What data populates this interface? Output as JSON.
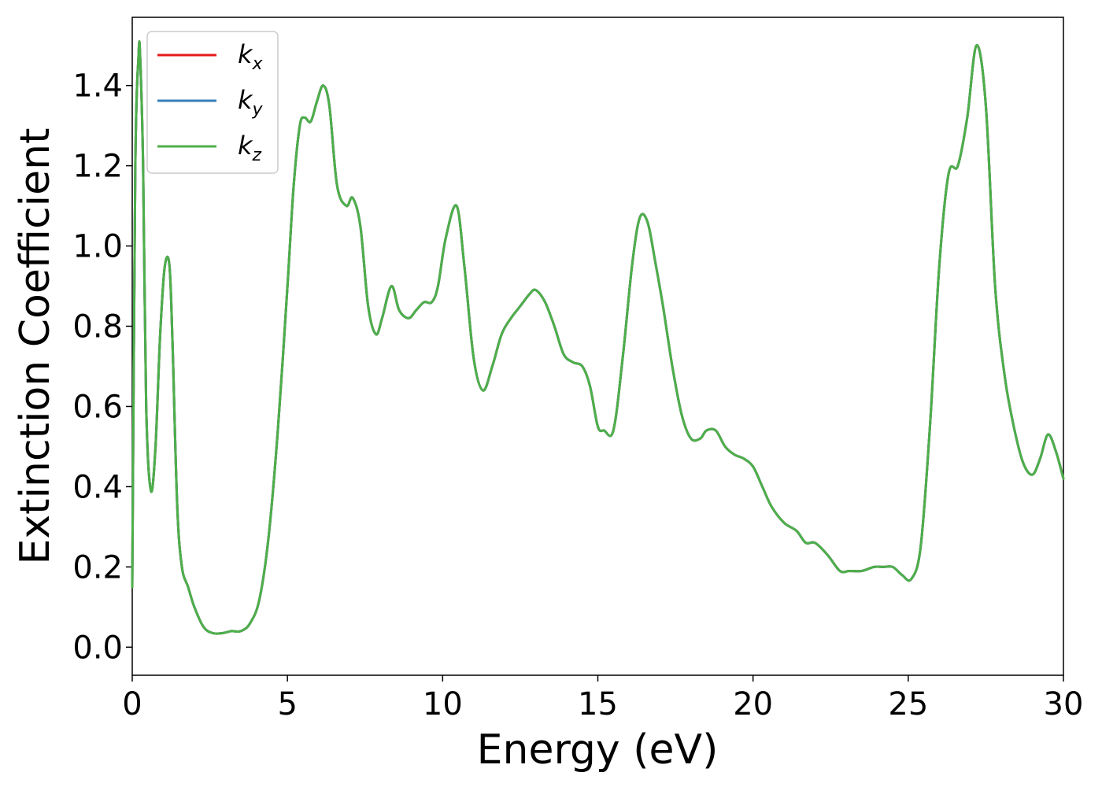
{
  "chart_data": {
    "type": "line",
    "title": "",
    "xlabel": "Energy (eV)",
    "ylabel": "Extinction Coefficient",
    "xlim": [
      0,
      30
    ],
    "ylim": [
      -0.07,
      1.57
    ],
    "x_ticks": [
      "0",
      "5",
      "10",
      "15",
      "20",
      "25",
      "30"
    ],
    "y_ticks": [
      "0.0",
      "0.2",
      "0.4",
      "0.6",
      "0.8",
      "1.0",
      "1.2",
      "1.4"
    ],
    "grid": false,
    "legend_position": "top-left",
    "series": [
      {
        "name": "k",
        "subscript": "x",
        "color": "#e41a1c"
      },
      {
        "name": "k",
        "subscript": "y",
        "color": "#377eb8"
      },
      {
        "name": "k",
        "subscript": "z",
        "color": "#4daf4a"
      }
    ],
    "x": [
      0,
      0.1,
      0.2,
      0.25,
      0.35,
      0.45,
      0.6,
      0.75,
      0.9,
      1.05,
      1.2,
      1.3,
      1.45,
      1.6,
      1.8,
      2.0,
      2.3,
      2.6,
      2.9,
      3.2,
      3.5,
      3.8,
      4.1,
      4.4,
      4.7,
      5.0,
      5.2,
      5.4,
      5.55,
      5.75,
      5.95,
      6.15,
      6.35,
      6.6,
      6.9,
      7.1,
      7.35,
      7.6,
      7.85,
      8.05,
      8.35,
      8.6,
      8.9,
      9.15,
      9.4,
      9.65,
      9.85,
      10.1,
      10.45,
      10.7,
      11.0,
      11.3,
      11.6,
      11.9,
      12.2,
      12.5,
      12.8,
      13.0,
      13.3,
      13.6,
      13.9,
      14.2,
      14.5,
      14.75,
      15.0,
      15.2,
      15.5,
      15.8,
      16.1,
      16.35,
      16.6,
      16.85,
      17.1,
      17.4,
      17.7,
      18.0,
      18.3,
      18.5,
      18.8,
      19.1,
      19.4,
      19.7,
      20.0,
      20.3,
      20.6,
      21.0,
      21.4,
      21.7,
      22.0,
      22.4,
      22.8,
      23.1,
      23.5,
      23.9,
      24.2,
      24.5,
      24.8,
      25.1,
      25.4,
      25.7,
      26.0,
      26.3,
      26.6,
      26.9,
      27.2,
      27.5,
      27.8,
      28.1,
      28.4,
      28.7,
      29.0,
      29.25,
      29.5,
      29.75,
      30.0
    ],
    "y": [
      0.15,
      1.2,
      1.47,
      1.48,
      1.2,
      0.6,
      0.39,
      0.5,
      0.78,
      0.95,
      0.95,
      0.75,
      0.35,
      0.2,
      0.15,
      0.1,
      0.05,
      0.035,
      0.035,
      0.04,
      0.04,
      0.06,
      0.12,
      0.28,
      0.55,
      0.9,
      1.15,
      1.3,
      1.32,
      1.31,
      1.36,
      1.4,
      1.35,
      1.15,
      1.1,
      1.12,
      1.05,
      0.85,
      0.78,
      0.82,
      0.9,
      0.84,
      0.82,
      0.84,
      0.86,
      0.86,
      0.9,
      1.02,
      1.1,
      0.95,
      0.72,
      0.64,
      0.7,
      0.78,
      0.82,
      0.85,
      0.88,
      0.89,
      0.86,
      0.8,
      0.73,
      0.71,
      0.7,
      0.65,
      0.55,
      0.54,
      0.54,
      0.72,
      0.95,
      1.07,
      1.06,
      0.96,
      0.85,
      0.7,
      0.58,
      0.52,
      0.52,
      0.54,
      0.54,
      0.5,
      0.48,
      0.47,
      0.45,
      0.4,
      0.35,
      0.31,
      0.29,
      0.26,
      0.26,
      0.23,
      0.19,
      0.19,
      0.19,
      0.2,
      0.2,
      0.2,
      0.18,
      0.17,
      0.25,
      0.55,
      0.95,
      1.18,
      1.2,
      1.32,
      1.5,
      1.35,
      0.9,
      0.68,
      0.55,
      0.46,
      0.43,
      0.47,
      0.53,
      0.49,
      0.42
    ]
  }
}
